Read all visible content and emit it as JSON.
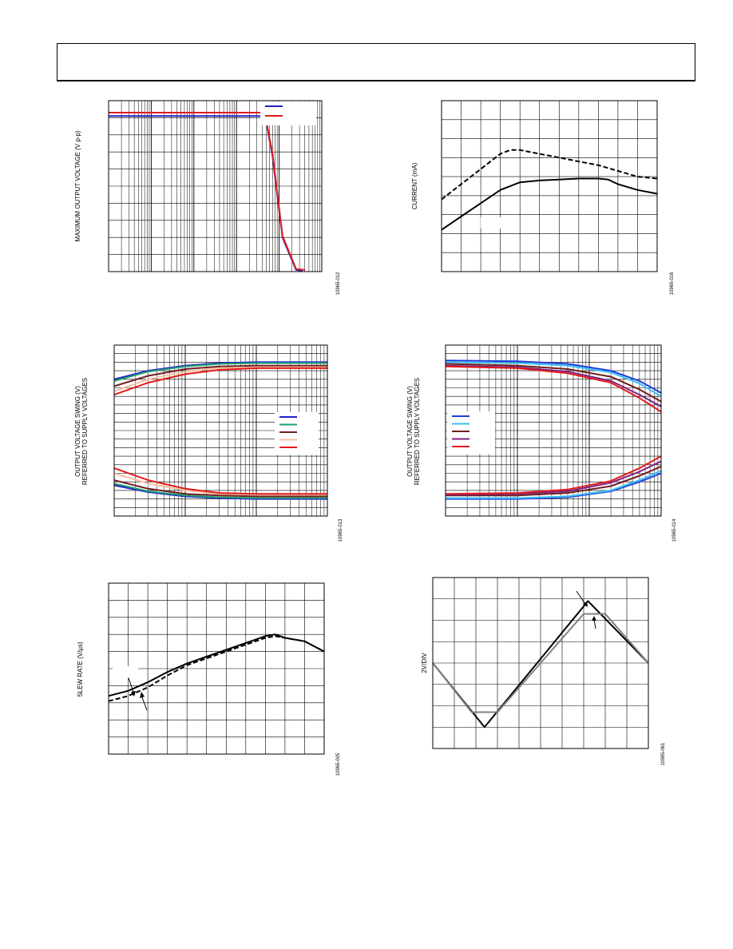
{
  "chart_data": [
    {
      "id": "max-output-voltage",
      "type": "line",
      "ylabel": "MAXIMUM OUTPUT VOLTAGE (V p-p)",
      "figure_code": "10965-012",
      "x_scale": "log",
      "xlim": [
        1000,
        100000000
      ],
      "ylim": [
        0,
        20
      ],
      "legend_placement": "top-right",
      "grid": true,
      "series": [
        {
          "color": "#1f1fbf",
          "x": [
            1000,
            4000000,
            5000000,
            7000000,
            12000000,
            25000000,
            35000000
          ],
          "y": [
            18.2,
            18.2,
            17.5,
            13.5,
            4.0,
            0.2,
            0.1
          ]
        },
        {
          "color": "#e21b1b",
          "x": [
            1000,
            4000000,
            5000000,
            7000000,
            12000000,
            25000000,
            40000000
          ],
          "y": [
            18.6,
            18.6,
            17.6,
            13.8,
            4.2,
            0.3,
            0.2
          ]
        }
      ]
    },
    {
      "id": "current",
      "type": "line",
      "ylabel": "CURRENT (mA)",
      "figure_code": "10965-016",
      "xlim": [
        0,
        11
      ],
      "ylim": [
        0,
        9
      ],
      "grid": true,
      "series": [
        {
          "color": "#000000",
          "dash": true,
          "x": [
            0,
            1,
            2,
            3,
            3.5,
            4,
            5,
            6,
            7,
            8,
            9,
            10,
            11
          ],
          "y": [
            3.8,
            4.6,
            5.4,
            6.2,
            6.4,
            6.4,
            6.2,
            6.0,
            5.8,
            5.6,
            5.3,
            5.0,
            4.9
          ]
        },
        {
          "color": "#000000",
          "dash": false,
          "x": [
            0,
            1,
            2,
            3,
            4,
            5,
            6,
            7,
            8,
            8.5,
            9,
            10,
            11
          ],
          "y": [
            2.2,
            2.9,
            3.6,
            4.3,
            4.7,
            4.8,
            4.85,
            4.9,
            4.9,
            4.85,
            4.6,
            4.3,
            4.1
          ]
        }
      ]
    },
    {
      "id": "swing-vs-current-left",
      "type": "line",
      "ylabel": "OUTPUT VOLTAGE SWING (V)\nREFERRED TO SUPPLY VOLTAGES",
      "figure_code": "10965-013",
      "x_scale": "log",
      "xlim": [
        100,
        100000
      ],
      "ylim": [
        0,
        20
      ],
      "legend_placement": "right",
      "grid": true,
      "series": [
        {
          "color": "#1f1fcf",
          "upper_x": [
            100,
            300,
            1000,
            3000,
            10000,
            100000
          ],
          "upper_y": [
            16.0,
            17.0,
            17.6,
            17.9,
            18.0,
            18.0
          ],
          "lower_x": [
            100,
            300,
            1000,
            3000,
            10000,
            100000
          ],
          "lower_y": [
            3.6,
            2.8,
            2.3,
            2.1,
            2.0,
            2.0
          ]
        },
        {
          "color": "#1f9f6f",
          "upper_x": [
            100,
            300,
            1000,
            3000,
            10000,
            100000
          ],
          "upper_y": [
            15.8,
            16.9,
            17.5,
            17.8,
            17.9,
            17.9
          ],
          "lower_x": [
            100,
            300,
            1000,
            3000,
            10000,
            100000
          ],
          "lower_y": [
            3.8,
            2.9,
            2.4,
            2.2,
            2.1,
            2.1
          ]
        },
        {
          "color": "#6f1f1f",
          "upper_x": [
            100,
            300,
            1000,
            3000,
            10000,
            100000
          ],
          "upper_y": [
            15.2,
            16.4,
            17.2,
            17.5,
            17.6,
            17.6
          ],
          "lower_x": [
            100,
            300,
            1000,
            3000,
            10000,
            100000
          ],
          "lower_y": [
            4.2,
            3.2,
            2.6,
            2.4,
            2.3,
            2.3
          ]
        },
        {
          "color": "#f7bf9f",
          "upper_x": [
            100,
            300,
            1000,
            3000,
            10000,
            100000
          ],
          "upper_y": [
            14.6,
            16.0,
            16.9,
            17.3,
            17.4,
            17.4
          ],
          "lower_x": [
            100,
            300,
            1000,
            3000,
            10000,
            100000
          ],
          "lower_y": [
            5.0,
            3.8,
            3.0,
            2.6,
            2.5,
            2.5
          ]
        },
        {
          "color": "#e21b1b",
          "upper_x": [
            100,
            300,
            1000,
            3000,
            10000,
            100000
          ],
          "upper_y": [
            14.2,
            15.6,
            16.6,
            17.1,
            17.3,
            17.3
          ],
          "lower_x": [
            100,
            300,
            1000,
            3000,
            10000,
            100000
          ],
          "lower_y": [
            5.6,
            4.2,
            3.2,
            2.7,
            2.6,
            2.6
          ]
        }
      ]
    },
    {
      "id": "swing-vs-current-right",
      "type": "line",
      "ylabel": "OUTPUT VOLTAGE SWING (V)\nREFERRED TO SUPPLY VOLTAGES",
      "figure_code": "10965-014",
      "x_scale": "log",
      "xlim": [
        100,
        100000
      ],
      "ylim": [
        0,
        20
      ],
      "legend_placement": "left",
      "grid": true,
      "series": [
        {
          "color": "#1f3fdf",
          "upper_x": [
            100,
            1000,
            5000,
            20000,
            50000,
            100000
          ],
          "upper_y": [
            18.2,
            18.1,
            17.8,
            17.0,
            15.8,
            14.4
          ],
          "lower_x": [
            100,
            1000,
            5000,
            20000,
            50000,
            100000
          ],
          "lower_y": [
            2.0,
            2.0,
            2.2,
            2.9,
            4.0,
            5.0
          ]
        },
        {
          "color": "#3fbfef",
          "upper_x": [
            100,
            1000,
            5000,
            20000,
            50000,
            100000
          ],
          "upper_y": [
            18.0,
            17.9,
            17.6,
            16.8,
            15.5,
            14.0
          ],
          "lower_x": [
            100,
            1000,
            5000,
            20000,
            50000,
            100000
          ],
          "lower_y": [
            2.1,
            2.1,
            2.3,
            3.0,
            4.2,
            5.3
          ]
        },
        {
          "color": "#6f1f1f",
          "upper_x": [
            100,
            1000,
            5000,
            20000,
            50000,
            100000
          ],
          "upper_y": [
            17.8,
            17.6,
            17.2,
            16.3,
            14.8,
            13.4
          ],
          "lower_x": [
            100,
            1000,
            5000,
            20000,
            50000,
            100000
          ],
          "lower_y": [
            2.4,
            2.4,
            2.7,
            3.5,
            4.7,
            5.8
          ]
        },
        {
          "color": "#7f1f7f",
          "upper_x": [
            100,
            1000,
            5000,
            20000,
            50000,
            100000
          ],
          "upper_y": [
            17.6,
            17.4,
            16.9,
            15.8,
            14.2,
            12.8
          ],
          "lower_x": [
            100,
            1000,
            5000,
            20000,
            50000,
            100000
          ],
          "lower_y": [
            2.5,
            2.6,
            2.9,
            3.9,
            5.2,
            6.4
          ]
        },
        {
          "color": "#e21b1b",
          "upper_x": [
            100,
            1000,
            5000,
            20000,
            50000,
            100000
          ],
          "upper_y": [
            17.5,
            17.3,
            16.7,
            15.6,
            13.8,
            12.2
          ],
          "lower_x": [
            100,
            1000,
            5000,
            20000,
            50000,
            100000
          ],
          "lower_y": [
            2.6,
            2.7,
            3.1,
            4.1,
            5.6,
            7.0
          ]
        }
      ]
    },
    {
      "id": "slew-rate",
      "type": "line",
      "ylabel": "SLEW RATE (V/µs)",
      "figure_code": "10965-005",
      "xlim": [
        0,
        11
      ],
      "ylim": [
        0,
        10
      ],
      "grid": true,
      "series": [
        {
          "color": "#000000",
          "dash": false,
          "x": [
            0,
            1,
            2,
            3,
            4,
            5,
            6,
            7,
            8,
            8.5,
            9,
            10,
            11
          ],
          "y": [
            3.4,
            3.7,
            4.2,
            4.8,
            5.3,
            5.7,
            6.1,
            6.5,
            6.9,
            7.0,
            6.8,
            6.6,
            6.0
          ]
        },
        {
          "color": "#000000",
          "dash": true,
          "x": [
            0,
            1,
            2,
            3,
            4,
            5,
            6,
            7,
            8,
            8.5,
            9,
            10,
            11
          ],
          "y": [
            3.1,
            3.4,
            3.9,
            4.6,
            5.2,
            5.6,
            6.0,
            6.4,
            6.8,
            6.9,
            6.8,
            6.6,
            6.0
          ]
        }
      ]
    },
    {
      "id": "transient-2v-div",
      "type": "line",
      "ylabel": "2V/DIV",
      "figure_code": "10965-061",
      "xlim": [
        0,
        10
      ],
      "ylim": [
        0,
        8
      ],
      "grid": true,
      "series": [
        {
          "color": "#000000",
          "x": [
            0,
            2.4,
            7.2,
            10
          ],
          "y": [
            4.0,
            1.0,
            6.9,
            4.0
          ]
        },
        {
          "color": "#808080",
          "x": [
            0,
            1.8,
            3.0,
            7.0,
            8.0,
            10
          ],
          "y": [
            4.0,
            1.7,
            1.7,
            6.3,
            6.3,
            4.0
          ]
        }
      ]
    }
  ]
}
